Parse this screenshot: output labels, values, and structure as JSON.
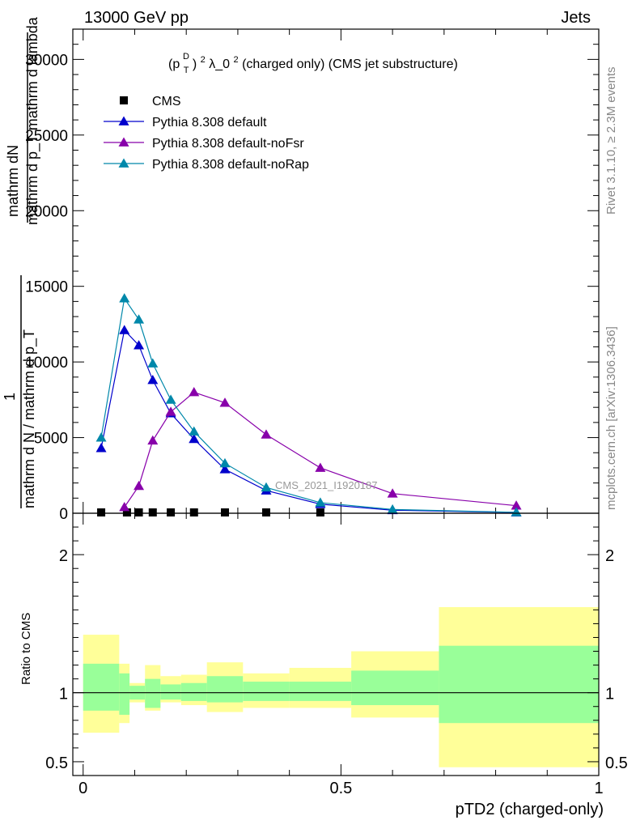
{
  "header": {
    "left": "13000 GeV pp",
    "right": "Jets"
  },
  "side_labels": {
    "rivet": "Rivet 3.1.10, ≥ 2.3M events",
    "mcplots": "mcplots.cern.ch [arXiv:1306.3436]"
  },
  "watermark": "CMS_2021_I1920187",
  "chart_data": [
    {
      "type": "line",
      "title_parts": {
        "p": "(p",
        "sup_d": "D",
        "sub_t": "T",
        "rest": ")",
        "sup_2": "2",
        "lambda": " λ_0",
        "sup_2b": "2",
        "tail": " (charged only) (CMS jet substructure)"
      },
      "ylabel_lines": [
        "mathrm d",
        "2",
        "N",
        "mathrm d p",
        "T",
        "mathrm d lambda",
        "1",
        "mathrm d N / mathrm d p",
        "T"
      ],
      "ylabel_plain": {
        "top": "mathrm dN",
        "mid": "mathrm d p_T mathrm d lambda",
        "one": "1",
        "bottom": "mathrm d N / mathrm d p_T"
      },
      "ylim": [
        0,
        32000
      ],
      "xlim": [
        -0.02,
        1.0
      ],
      "yticks": [
        0,
        5000,
        10000,
        15000,
        20000,
        25000,
        30000
      ],
      "ytick_labels": [
        "0",
        "5000",
        "10000",
        "15000",
        "20000",
        "25000",
        "30000"
      ],
      "legend": {
        "placement": "top-left",
        "entries": [
          "CMS",
          "Pythia 8.308 default",
          "Pythia 8.308 default-noFsr",
          "Pythia 8.308 default-noRap"
        ]
      },
      "series": [
        {
          "name": "CMS",
          "marker": "square",
          "color": "#000000",
          "x": [
            0.035,
            0.085,
            0.108,
            0.135,
            0.17,
            0.215,
            0.275,
            0.355,
            0.46
          ],
          "y": [
            0,
            0,
            0,
            0,
            0,
            0,
            0,
            0,
            0
          ]
        },
        {
          "name": "Pythia 8.308 default",
          "marker": "triangle",
          "color": "#0000cc",
          "x": [
            0.035,
            0.08,
            0.108,
            0.135,
            0.17,
            0.215,
            0.275,
            0.355,
            0.46,
            0.6,
            0.84
          ],
          "y": [
            4300,
            12100,
            11100,
            8800,
            6600,
            4900,
            2900,
            1500,
            600,
            200,
            50
          ]
        },
        {
          "name": "Pythia 8.308 default-noFsr",
          "marker": "triangle",
          "color": "#8800aa",
          "x": [
            0.08,
            0.108,
            0.135,
            0.17,
            0.215,
            0.275,
            0.355,
            0.46,
            0.6,
            0.84
          ],
          "y": [
            400,
            1800,
            4800,
            6700,
            8000,
            7300,
            5200,
            3000,
            1300,
            500
          ]
        },
        {
          "name": "Pythia 8.308 default-noRap",
          "marker": "triangle",
          "color": "#0088aa",
          "x": [
            0.035,
            0.08,
            0.108,
            0.135,
            0.17,
            0.215,
            0.275,
            0.355,
            0.46,
            0.6,
            0.84
          ],
          "y": [
            5000,
            14200,
            12800,
            9900,
            7500,
            5400,
            3300,
            1700,
            700,
            250,
            60
          ]
        }
      ]
    },
    {
      "type": "area",
      "ylabel": "Ratio to CMS",
      "xlabel": "pTD2 (charged-only)",
      "ylim": [
        0.4,
        2.3
      ],
      "xlim": [
        -0.02,
        1.0
      ],
      "yticks_labeled": [
        0.5,
        1,
        2
      ],
      "ytick_labels": [
        "0.5",
        "1",
        "2"
      ],
      "xticks_labeled": [
        0,
        0.5,
        1
      ],
      "xtick_labels": [
        "0",
        "0.5",
        "1"
      ],
      "reference_line": 1,
      "bands": [
        {
          "x0": 0.0,
          "x1": 0.07,
          "inner": [
            0.87,
            1.21
          ],
          "outer": [
            0.71,
            1.42
          ]
        },
        {
          "x0": 0.07,
          "x1": 0.09,
          "inner": [
            0.84,
            1.14
          ],
          "outer": [
            0.78,
            1.21
          ]
        },
        {
          "x0": 0.09,
          "x1": 0.12,
          "inner": [
            0.95,
            1.05
          ],
          "outer": [
            0.93,
            1.07
          ]
        },
        {
          "x0": 0.12,
          "x1": 0.15,
          "inner": [
            0.89,
            1.1
          ],
          "outer": [
            0.87,
            1.2
          ]
        },
        {
          "x0": 0.15,
          "x1": 0.19,
          "inner": [
            0.95,
            1.06
          ],
          "outer": [
            0.93,
            1.12
          ]
        },
        {
          "x0": 0.19,
          "x1": 0.24,
          "inner": [
            0.94,
            1.07
          ],
          "outer": [
            0.91,
            1.13
          ]
        },
        {
          "x0": 0.24,
          "x1": 0.31,
          "inner": [
            0.93,
            1.12
          ],
          "outer": [
            0.86,
            1.22
          ]
        },
        {
          "x0": 0.31,
          "x1": 0.4,
          "inner": [
            0.94,
            1.08
          ],
          "outer": [
            0.89,
            1.14
          ]
        },
        {
          "x0": 0.4,
          "x1": 0.52,
          "inner": [
            0.94,
            1.08
          ],
          "outer": [
            0.89,
            1.18
          ]
        },
        {
          "x0": 0.52,
          "x1": 0.69,
          "inner": [
            0.91,
            1.16
          ],
          "outer": [
            0.82,
            1.3
          ]
        },
        {
          "x0": 0.69,
          "x1": 1.0,
          "inner": [
            0.78,
            1.34
          ],
          "outer": [
            0.46,
            1.62
          ]
        }
      ],
      "colors": {
        "inner": "#99ff99",
        "outer": "#ffff99"
      }
    }
  ]
}
